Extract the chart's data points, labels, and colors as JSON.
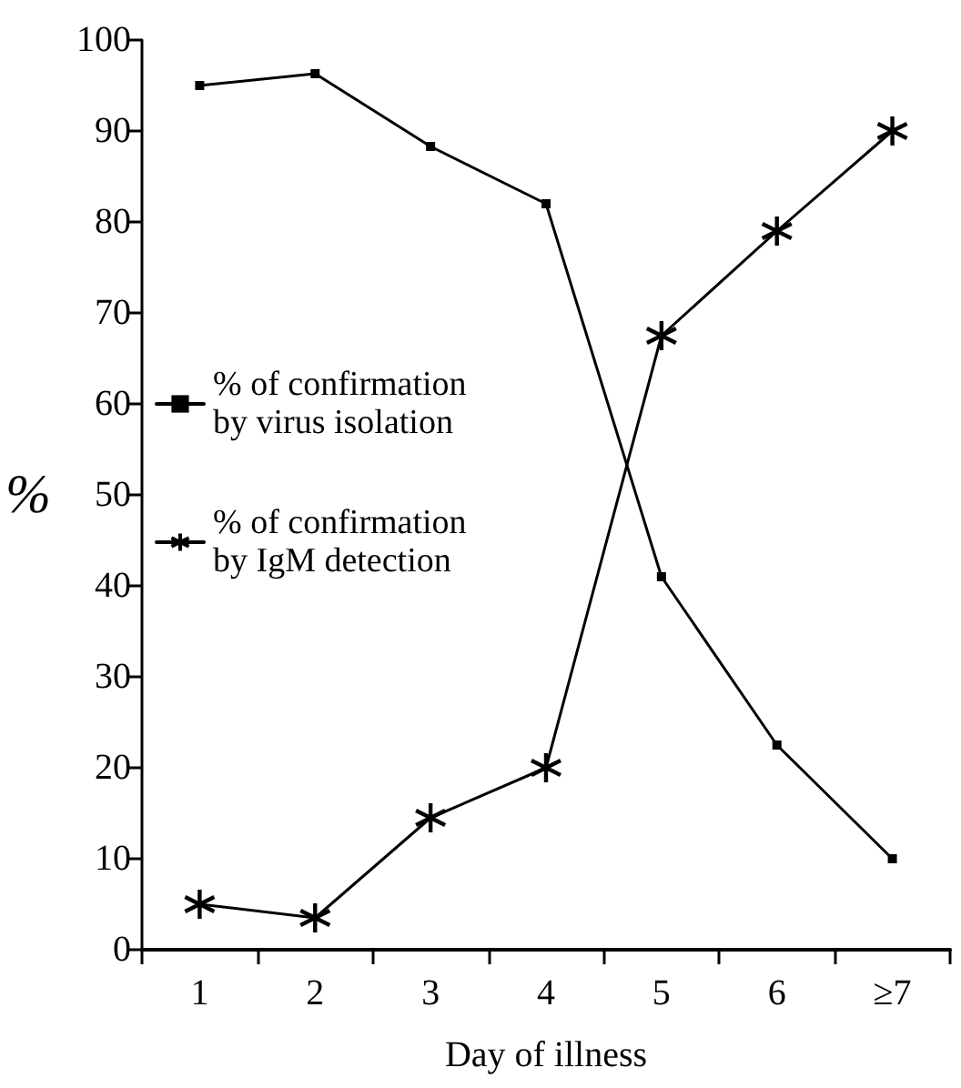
{
  "chart_data": {
    "type": "line",
    "xlabel": "Day of illness",
    "ylabel": "%",
    "categories": [
      "1",
      "2",
      "3",
      "4",
      "5",
      "6",
      "≥7"
    ],
    "series": [
      {
        "name": "% of confirmation by virus isolation",
        "color": "#000000",
        "marker": "square",
        "values": [
          95,
          96.3,
          88.3,
          82,
          41,
          22.5,
          10
        ]
      },
      {
        "name": "% of confirmation by IgM detection",
        "color": "#000000",
        "marker": "cross",
        "values": [
          5,
          3.5,
          14.5,
          20,
          67.5,
          79,
          90
        ]
      }
    ],
    "ylim": [
      0,
      100
    ],
    "yticks": [
      0,
      10,
      20,
      30,
      40,
      50,
      60,
      70,
      80,
      90,
      100
    ],
    "grid": false,
    "legend": "left",
    "line_style": "solid"
  }
}
